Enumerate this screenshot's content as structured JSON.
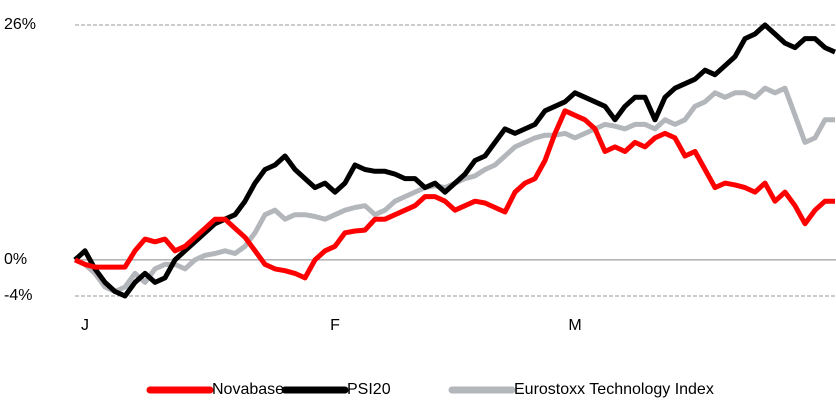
{
  "chart_data": {
    "type": "line",
    "categories": [
      null,
      "J",
      null,
      null,
      null,
      null,
      null,
      null,
      null,
      null,
      null,
      null,
      null,
      null,
      null,
      null,
      null,
      null,
      null,
      null,
      null,
      null,
      null,
      null,
      null,
      null,
      "F",
      null,
      null,
      null,
      null,
      null,
      null,
      null,
      null,
      null,
      null,
      null,
      null,
      null,
      null,
      null,
      null,
      null,
      null,
      null,
      null,
      null,
      null,
      null,
      "M",
      null,
      null,
      null,
      null,
      null,
      null,
      null,
      null,
      null,
      null,
      null,
      null,
      null,
      null,
      null,
      null,
      null,
      null,
      null,
      null,
      null,
      null,
      null,
      null,
      null,
      null
    ],
    "series": [
      {
        "name": "Novabase",
        "color": "#ff0000",
        "values": [
          0,
          -0.5,
          -0.8,
          -0.8,
          -0.8,
          -0.8,
          1,
          2.3,
          2,
          2.3,
          1,
          1.5,
          2.5,
          3.5,
          4.5,
          4.5,
          3.5,
          2.5,
          1,
          -0.5,
          -1,
          -1.2,
          -1.5,
          -2,
          0,
          1,
          1.5,
          3,
          3.2,
          3.3,
          4.5,
          4.5,
          5,
          5.5,
          6,
          7,
          7,
          6.5,
          5.5,
          6,
          6.5,
          6.3,
          5.8,
          5.3,
          7.5,
          8.5,
          9,
          11,
          14,
          16.5,
          16,
          15.5,
          14.5,
          12,
          12.5,
          12,
          13,
          12.5,
          13.5,
          14,
          13.5,
          11.5,
          12,
          10,
          8,
          8.5,
          8.3,
          8,
          7.5,
          8.5,
          6.5,
          7.5,
          6,
          4,
          5.5,
          6.5,
          6.5
        ]
      },
      {
        "name": "PSI20",
        "color": "#000000",
        "values": [
          0,
          1,
          -1,
          -2.5,
          -3.5,
          -4,
          -2.5,
          -1.5,
          -2.5,
          -2,
          0,
          1,
          2,
          3,
          4,
          4.5,
          5,
          6.5,
          8.5,
          10,
          10.5,
          11.5,
          10,
          9,
          8,
          8.5,
          7.5,
          8.5,
          10.5,
          10,
          9.8,
          9.8,
          9.5,
          9,
          9,
          8,
          8.5,
          7.5,
          8.5,
          9.5,
          11,
          11.5,
          13,
          14.5,
          14,
          14.5,
          15,
          16.5,
          17,
          17.5,
          18.5,
          18,
          17.5,
          17,
          15.5,
          17,
          18,
          18,
          15.5,
          18,
          19,
          19.5,
          20,
          21,
          20.5,
          21.5,
          22.5,
          24.5,
          25,
          26,
          25,
          24,
          23.5,
          24.5,
          24.5,
          23.5,
          23
        ]
      },
      {
        "name": "Eurostoxx Technology Index",
        "color": "#b3b6ba",
        "values": [
          0,
          -0.5,
          -1.5,
          -3,
          -3.5,
          -3,
          -1.5,
          -2.5,
          -1,
          -0.5,
          -0.5,
          -1,
          0,
          0.5,
          0.7,
          1,
          0.7,
          1.5,
          3,
          5,
          5.5,
          4.5,
          5,
          5,
          4.8,
          4.5,
          5,
          5.5,
          5.8,
          6,
          5,
          5.5,
          6.5,
          7,
          7.5,
          8,
          8.2,
          8,
          8.5,
          9,
          9.3,
          10,
          10.5,
          11.5,
          12.5,
          13,
          13.5,
          13.8,
          13.8,
          14,
          13.5,
          14,
          14.5,
          15,
          14.8,
          14.5,
          15,
          15,
          14.5,
          15.5,
          15,
          15.5,
          17,
          17.5,
          18.5,
          18,
          18.5,
          18.5,
          18,
          19,
          18.5,
          19,
          16,
          13,
          13.5,
          15.5,
          15.5
        ]
      }
    ],
    "ylim": [
      -4,
      26
    ],
    "yticks": [
      {
        "value": 26,
        "label": "26%"
      },
      {
        "value": 0,
        "label": "0%"
      },
      {
        "value": -4,
        "label": "-4%"
      }
    ],
    "grid": true
  }
}
